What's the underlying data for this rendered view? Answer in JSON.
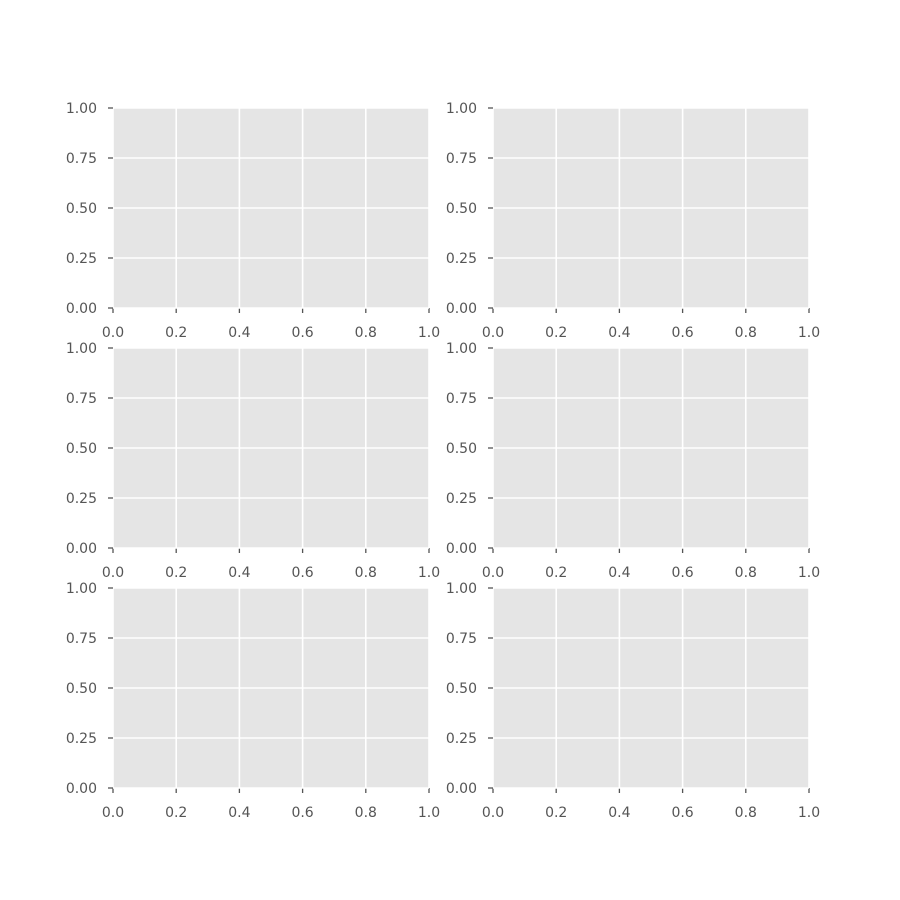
{
  "figure": {
    "background": "#ffffff",
    "axes_facecolor": "#e5e5e5",
    "grid_color": "#ffffff",
    "tick_color": "#555555",
    "tick_label_color": "#555555"
  },
  "chart_data": [
    {
      "type": "line",
      "title": "",
      "xlabel": "",
      "ylabel": "",
      "xlim": [
        0,
        1
      ],
      "ylim": [
        0,
        1
      ],
      "grid": true,
      "x_ticks": [
        "0.0",
        "0.2",
        "0.4",
        "0.6",
        "0.8",
        "1.0"
      ],
      "y_ticks": [
        "0.00",
        "0.25",
        "0.50",
        "0.75",
        "1.00"
      ],
      "series": []
    },
    {
      "type": "line",
      "title": "",
      "xlabel": "",
      "ylabel": "",
      "xlim": [
        0,
        1
      ],
      "ylim": [
        0,
        1
      ],
      "grid": true,
      "x_ticks": [
        "0.0",
        "0.2",
        "0.4",
        "0.6",
        "0.8",
        "1.0"
      ],
      "y_ticks": [
        "0.00",
        "0.25",
        "0.50",
        "0.75",
        "1.00"
      ],
      "series": []
    },
    {
      "type": "line",
      "title": "",
      "xlabel": "",
      "ylabel": "",
      "xlim": [
        0,
        1
      ],
      "ylim": [
        0,
        1
      ],
      "grid": true,
      "x_ticks": [
        "0.0",
        "0.2",
        "0.4",
        "0.6",
        "0.8",
        "1.0"
      ],
      "y_ticks": [
        "0.00",
        "0.25",
        "0.50",
        "0.75",
        "1.00"
      ],
      "series": []
    },
    {
      "type": "line",
      "title": "",
      "xlabel": "",
      "ylabel": "",
      "xlim": [
        0,
        1
      ],
      "ylim": [
        0,
        1
      ],
      "grid": true,
      "x_ticks": [
        "0.0",
        "0.2",
        "0.4",
        "0.6",
        "0.8",
        "1.0"
      ],
      "y_ticks": [
        "0.00",
        "0.25",
        "0.50",
        "0.75",
        "1.00"
      ],
      "series": []
    },
    {
      "type": "line",
      "title": "",
      "xlabel": "",
      "ylabel": "",
      "xlim": [
        0,
        1
      ],
      "ylim": [
        0,
        1
      ],
      "grid": true,
      "x_ticks": [
        "0.0",
        "0.2",
        "0.4",
        "0.6",
        "0.8",
        "1.0"
      ],
      "y_ticks": [
        "0.00",
        "0.25",
        "0.50",
        "0.75",
        "1.00"
      ],
      "series": []
    },
    {
      "type": "line",
      "title": "",
      "xlabel": "",
      "ylabel": "",
      "xlim": [
        0,
        1
      ],
      "ylim": [
        0,
        1
      ],
      "grid": true,
      "x_ticks": [
        "0.0",
        "0.2",
        "0.4",
        "0.6",
        "0.8",
        "1.0"
      ],
      "y_ticks": [
        "0.00",
        "0.25",
        "0.50",
        "0.75",
        "1.00"
      ],
      "series": []
    }
  ]
}
